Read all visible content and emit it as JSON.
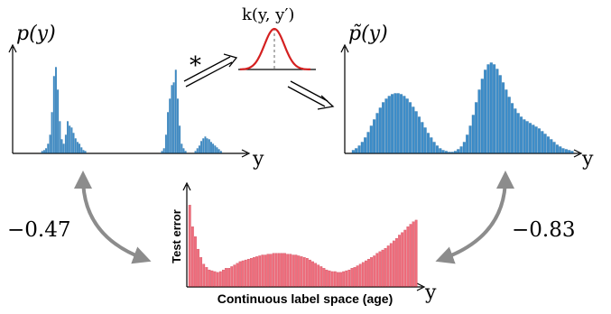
{
  "labels": {
    "p_y": "p(y)",
    "p_tilde_y": "p̃(y)",
    "kernel": "k(y, y′)",
    "conv": "*",
    "y_left": "y",
    "y_right": "y",
    "y_bottom": "y",
    "corr_left": "−0.47",
    "corr_right": "−0.83",
    "test_error": "Test error",
    "label_space": "Continuous label space (age)"
  },
  "colors": {
    "hist_blue": "#3d8dc9",
    "hist_red": "#f06e7d",
    "kernel": "#d42020",
    "arrow_gray": "#8c8c8c",
    "axis": "#000000"
  },
  "chart_data": [
    {
      "type": "bar",
      "title": "p(y)",
      "xlabel": "y",
      "ylabel": "",
      "description_values": "sparse empirical label histogram",
      "values": [
        0,
        0,
        0,
        0,
        0,
        0,
        0,
        0,
        0,
        0,
        0,
        0.02,
        0.03,
        0.05,
        0.1,
        0.2,
        0.45,
        0.85,
        0.95,
        0.7,
        0.35,
        0.15,
        0.1,
        0.2,
        0.35,
        0.3,
        0.28,
        0.22,
        0.16,
        0.12,
        0.1,
        0.06,
        0.03,
        0.02,
        0,
        0,
        0,
        0,
        0,
        0,
        0,
        0,
        0,
        0,
        0,
        0,
        0,
        0,
        0,
        0,
        0,
        0,
        0,
        0,
        0,
        0,
        0,
        0,
        0,
        0,
        0,
        0,
        0,
        0,
        0,
        0,
        0,
        0,
        0,
        0,
        0,
        0,
        0.02,
        0.05,
        0.2,
        0.45,
        0.6,
        0.75,
        0.78,
        0.92,
        0.6,
        0.3,
        0.1,
        0.05,
        0.02,
        0,
        0,
        0,
        0,
        0.02,
        0.05,
        0.08,
        0.13,
        0.16,
        0.18,
        0.16,
        0.15,
        0.12,
        0.1,
        0.08,
        0.06,
        0.04,
        0.02,
        0,
        0,
        0,
        0,
        0,
        0,
        0,
        0,
        0,
        0
      ]
    },
    {
      "type": "bar",
      "title": "p̃(y)",
      "xlabel": "y",
      "ylabel": "",
      "values": [
        0.03,
        0.05,
        0.08,
        0.12,
        0.17,
        0.23,
        0.3,
        0.37,
        0.44,
        0.5,
        0.56,
        0.6,
        0.63,
        0.65,
        0.66,
        0.66,
        0.65,
        0.63,
        0.6,
        0.56,
        0.51,
        0.46,
        0.4,
        0.34,
        0.28,
        0.22,
        0.17,
        0.12,
        0.08,
        0.05,
        0.03,
        0.02,
        0.01,
        0.01,
        0.02,
        0.04,
        0.07,
        0.12,
        0.2,
        0.3,
        0.42,
        0.56,
        0.7,
        0.82,
        0.92,
        0.98,
        1.0,
        0.98,
        0.93,
        0.86,
        0.78,
        0.7,
        0.62,
        0.55,
        0.49,
        0.44,
        0.4,
        0.37,
        0.35,
        0.33,
        0.31,
        0.29,
        0.27,
        0.24,
        0.21,
        0.18,
        0.15,
        0.12,
        0.09,
        0.07,
        0.05,
        0.04,
        0.03,
        0.02
      ]
    },
    {
      "type": "bar",
      "title": "",
      "xlabel": "Continuous label space (age)",
      "ylabel": "Test error",
      "values": [
        0.98,
        0.72,
        0.6,
        0.45,
        0.35,
        0.27,
        0.23,
        0.2,
        0.19,
        0.18,
        0.17,
        0.18,
        0.2,
        0.22,
        0.22,
        0.24,
        0.26,
        0.28,
        0.3,
        0.31,
        0.32,
        0.33,
        0.34,
        0.35,
        0.36,
        0.37,
        0.38,
        0.38,
        0.39,
        0.39,
        0.4,
        0.4,
        0.4,
        0.4,
        0.4,
        0.39,
        0.39,
        0.38,
        0.38,
        0.37,
        0.36,
        0.35,
        0.34,
        0.32,
        0.3,
        0.28,
        0.26,
        0.24,
        0.22,
        0.2,
        0.19,
        0.18,
        0.18,
        0.17,
        0.17,
        0.18,
        0.19,
        0.2,
        0.22,
        0.23,
        0.25,
        0.27,
        0.29,
        0.31,
        0.33,
        0.35,
        0.37,
        0.4,
        0.42,
        0.44,
        0.46,
        0.49,
        0.52,
        0.55,
        0.58,
        0.62,
        0.65,
        0.68,
        0.72,
        0.75,
        0.78,
        0.8
      ]
    }
  ]
}
